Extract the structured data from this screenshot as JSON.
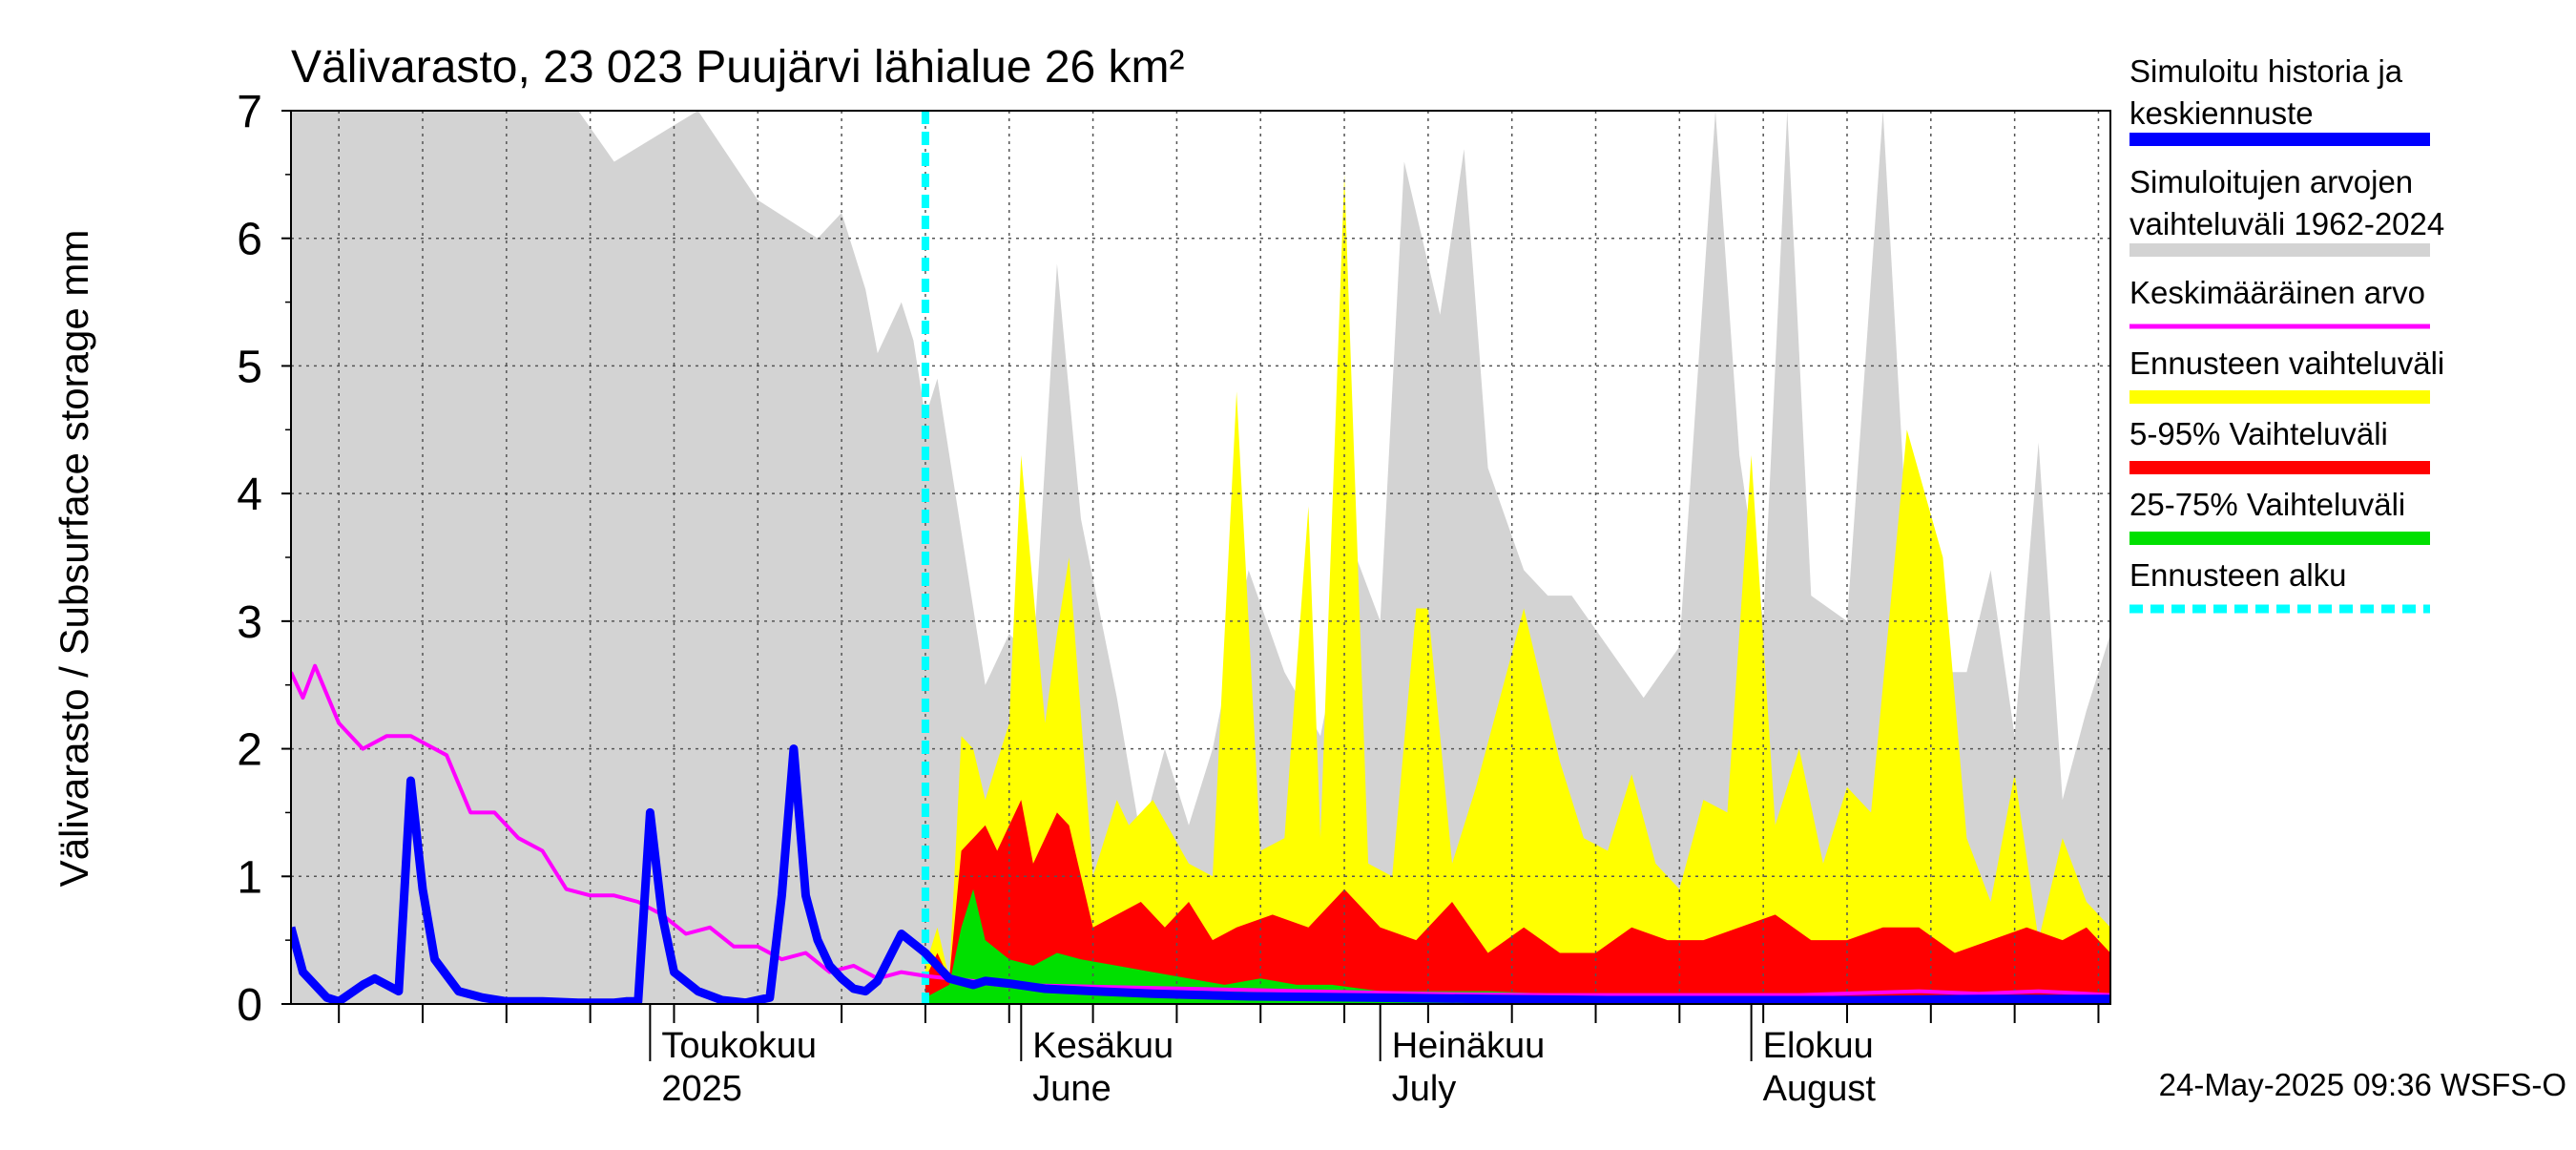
{
  "chart_data": {
    "type": "area",
    "title": "Välivarasto, 23 023 Puujärvi lähialue 26 km²",
    "ylabel": "Välivarasto / Subsurface storage  mm",
    "xlabel": "",
    "ylim": [
      0,
      7
    ],
    "xlim": [
      "2025-04-01",
      "2025-08-31"
    ],
    "y_ticks": [
      "0",
      "1",
      "2",
      "3",
      "4",
      "5",
      "6",
      "7"
    ],
    "x_tick_labels": [
      {
        "line1": "Toukokuu",
        "line2": "2025",
        "date": "2025-05-01"
      },
      {
        "line1": "Kesäkuu",
        "line2": "June",
        "date": "2025-06-01"
      },
      {
        "line1": "Heinäkuu",
        "line2": "July",
        "date": "2025-07-01"
      },
      {
        "line1": "Elokuu",
        "line2": "August",
        "date": "2025-08-01"
      }
    ],
    "grid": true,
    "legend_position": "right",
    "forecast_start": "2025-05-24",
    "footer": "24-May-2025 09:36 WSFS-O",
    "legend": [
      {
        "label1": "Simuloitu historia ja",
        "label2": "keskiennuste",
        "color": "#0000ff",
        "style": "thick"
      },
      {
        "label1": "Simuloitujen arvojen",
        "label2": "vaihteluväli 1962-2024",
        "color": "#d3d3d3",
        "style": "thick"
      },
      {
        "label1": "Keskimääräinen arvo",
        "label2": "",
        "color": "#ff00ff",
        "style": "thin"
      },
      {
        "label1": "Ennusteen vaihteluväli",
        "label2": "",
        "color": "#ffff00",
        "style": "thick"
      },
      {
        "label1": "5-95% Vaihteluväli",
        "label2": "",
        "color": "#ff0000",
        "style": "thick"
      },
      {
        "label1": "25-75% Vaihteluväli",
        "label2": "",
        "color": "#00e000",
        "style": "thick"
      },
      {
        "label1": "Ennusteen alku",
        "label2": "",
        "color": "#00ffff",
        "style": "dashed"
      }
    ],
    "series": [
      {
        "name": "Simuloitujen arvojen vaihteluväli 1962-2024",
        "kind": "band",
        "color": "#d3d3d3",
        "x": [
          "2025-04-01",
          "2025-04-15",
          "2025-04-25",
          "2025-04-28",
          "2025-05-05",
          "2025-05-10",
          "2025-05-15",
          "2025-05-17",
          "2025-05-19",
          "2025-05-20",
          "2025-05-22",
          "2025-05-23",
          "2025-05-24",
          "2025-05-25",
          "2025-05-27",
          "2025-05-29",
          "2025-05-31",
          "2025-06-02",
          "2025-06-04",
          "2025-06-06",
          "2025-06-09",
          "2025-06-11",
          "2025-06-13",
          "2025-06-15",
          "2025-06-17",
          "2025-06-20",
          "2025-06-23",
          "2025-06-26",
          "2025-06-29",
          "2025-07-01",
          "2025-07-03",
          "2025-07-06",
          "2025-07-08",
          "2025-07-10",
          "2025-07-13",
          "2025-07-15",
          "2025-07-17",
          "2025-07-20",
          "2025-07-23",
          "2025-07-26",
          "2025-07-29",
          "2025-07-31",
          "2025-08-02",
          "2025-08-04",
          "2025-08-06",
          "2025-08-09",
          "2025-08-12",
          "2025-08-15",
          "2025-08-17",
          "2025-08-19",
          "2025-08-21",
          "2025-08-23",
          "2025-08-25",
          "2025-08-27",
          "2025-08-29",
          "2025-08-31"
        ],
        "upper": [
          7.0,
          7.0,
          7.0,
          6.6,
          7.0,
          6.3,
          6.0,
          6.2,
          5.6,
          5.1,
          5.5,
          5.2,
          4.6,
          4.9,
          3.7,
          2.5,
          2.9,
          2.7,
          5.8,
          3.8,
          2.4,
          1.3,
          2.0,
          1.4,
          2.0,
          3.4,
          2.6,
          2.1,
          3.5,
          3.0,
          6.6,
          5.4,
          6.7,
          4.2,
          3.4,
          3.2,
          3.2,
          2.8,
          2.4,
          2.8,
          7.0,
          4.3,
          3.0,
          7.0,
          3.2,
          3.0,
          7.0,
          2.0,
          2.6,
          2.6,
          3.4,
          2.1,
          4.4,
          1.6,
          2.3,
          2.9
        ],
        "lower": [
          0.0,
          0.0,
          0.0,
          0.0,
          0.0,
          0.0,
          0.0,
          0.0,
          0.0,
          0.0,
          0.0,
          0.0,
          0.0,
          0.0,
          0.0,
          0.0,
          0.0,
          0.0,
          0.0,
          0.0,
          0.0,
          0.0,
          0.0,
          0.0,
          0.0,
          0.0,
          0.0,
          0.0,
          0.0,
          0.0,
          0.0,
          0.0,
          0.0,
          0.0,
          0.0,
          0.0,
          0.0,
          0.0,
          0.0,
          0.0,
          0.0,
          0.0,
          0.0,
          0.0,
          0.0,
          0.0,
          0.0,
          0.0,
          0.0,
          0.0,
          0.0,
          0.0,
          0.0,
          0.0,
          0.0,
          0.0
        ]
      },
      {
        "name": "Ennusteen vaihteluväli",
        "kind": "band",
        "color": "#ffff00",
        "x": [
          "2025-05-24",
          "2025-05-25",
          "2025-05-26",
          "2025-05-27",
          "2025-05-28",
          "2025-05-29",
          "2025-05-31",
          "2025-06-01",
          "2025-06-03",
          "2025-06-04",
          "2025-06-05",
          "2025-06-07",
          "2025-06-08",
          "2025-06-09",
          "2025-06-10",
          "2025-06-12",
          "2025-06-15",
          "2025-06-17",
          "2025-06-19",
          "2025-06-21",
          "2025-06-23",
          "2025-06-25",
          "2025-06-26",
          "2025-06-28",
          "2025-06-30",
          "2025-07-02",
          "2025-07-04",
          "2025-07-05",
          "2025-07-07",
          "2025-07-09",
          "2025-07-11",
          "2025-07-13",
          "2025-07-16",
          "2025-07-18",
          "2025-07-20",
          "2025-07-22",
          "2025-07-24",
          "2025-07-26",
          "2025-07-28",
          "2025-07-30",
          "2025-08-01",
          "2025-08-03",
          "2025-08-05",
          "2025-08-07",
          "2025-08-09",
          "2025-08-11",
          "2025-08-14",
          "2025-08-17",
          "2025-08-19",
          "2025-08-21",
          "2025-08-23",
          "2025-08-25",
          "2025-08-27",
          "2025-08-29",
          "2025-08-31"
        ],
        "upper": [
          0.3,
          0.6,
          0.2,
          2.1,
          2.0,
          1.6,
          2.2,
          4.3,
          2.2,
          2.9,
          3.5,
          1.0,
          1.3,
          1.6,
          1.4,
          1.6,
          1.1,
          1.0,
          4.8,
          1.2,
          1.3,
          3.9,
          1.3,
          6.5,
          1.1,
          1.0,
          3.1,
          3.1,
          1.1,
          1.7,
          2.4,
          3.1,
          1.9,
          1.3,
          1.2,
          1.8,
          1.1,
          0.9,
          1.6,
          1.5,
          4.3,
          1.4,
          2.0,
          1.1,
          1.7,
          1.5,
          4.5,
          3.5,
          1.3,
          0.8,
          1.8,
          0.5,
          1.3,
          0.8,
          0.6
        ],
        "lower": [
          0.0,
          0.0,
          0.0,
          0.0,
          0.0,
          0.0,
          0.0,
          0.0,
          0.0,
          0.0,
          0.0,
          0.0,
          0.0,
          0.0,
          0.0,
          0.0,
          0.0,
          0.0,
          0.0,
          0.0,
          0.0,
          0.0,
          0.0,
          0.0,
          0.0,
          0.0,
          0.0,
          0.0,
          0.0,
          0.0,
          0.0,
          0.0,
          0.0,
          0.0,
          0.0,
          0.0,
          0.0,
          0.0,
          0.0,
          0.0,
          0.0,
          0.0,
          0.0,
          0.0,
          0.0,
          0.0,
          0.0,
          0.0,
          0.0,
          0.0,
          0.0,
          0.0,
          0.0,
          0.0,
          0.0
        ]
      },
      {
        "name": "5-95% Vaihteluväli",
        "kind": "band",
        "color": "#ff0000",
        "x": [
          "2025-05-24",
          "2025-05-25",
          "2025-05-26",
          "2025-05-27",
          "2025-05-28",
          "2025-05-29",
          "2025-05-30",
          "2025-06-01",
          "2025-06-02",
          "2025-06-04",
          "2025-06-05",
          "2025-06-07",
          "2025-06-09",
          "2025-06-11",
          "2025-06-13",
          "2025-06-15",
          "2025-06-17",
          "2025-06-19",
          "2025-06-22",
          "2025-06-25",
          "2025-06-28",
          "2025-07-01",
          "2025-07-04",
          "2025-07-07",
          "2025-07-10",
          "2025-07-13",
          "2025-07-16",
          "2025-07-19",
          "2025-07-22",
          "2025-07-25",
          "2025-07-28",
          "2025-07-31",
          "2025-08-03",
          "2025-08-06",
          "2025-08-09",
          "2025-08-12",
          "2025-08-15",
          "2025-08-18",
          "2025-08-21",
          "2025-08-24",
          "2025-08-27",
          "2025-08-29",
          "2025-08-31"
        ],
        "upper": [
          0.2,
          0.4,
          0.2,
          1.2,
          1.3,
          1.4,
          1.2,
          1.6,
          1.1,
          1.5,
          1.4,
          0.6,
          0.7,
          0.8,
          0.6,
          0.8,
          0.5,
          0.6,
          0.7,
          0.6,
          0.9,
          0.6,
          0.5,
          0.8,
          0.4,
          0.6,
          0.4,
          0.4,
          0.6,
          0.5,
          0.5,
          0.6,
          0.7,
          0.5,
          0.5,
          0.6,
          0.6,
          0.4,
          0.5,
          0.6,
          0.5,
          0.6,
          0.4
        ],
        "lower": [
          0.0,
          0.0,
          0.0,
          0.0,
          0.0,
          0.0,
          0.0,
          0.0,
          0.0,
          0.0,
          0.0,
          0.0,
          0.0,
          0.0,
          0.0,
          0.0,
          0.0,
          0.0,
          0.0,
          0.0,
          0.0,
          0.0,
          0.0,
          0.0,
          0.0,
          0.0,
          0.0,
          0.0,
          0.0,
          0.0,
          0.0,
          0.0,
          0.0,
          0.0,
          0.0,
          0.0,
          0.0,
          0.0,
          0.0,
          0.0,
          0.0,
          0.0,
          0.0
        ]
      },
      {
        "name": "25-75% Vaihteluväli",
        "kind": "band",
        "color": "#00e000",
        "x": [
          "2025-05-24",
          "2025-05-26",
          "2025-05-27",
          "2025-05-28",
          "2025-05-29",
          "2025-05-31",
          "2025-06-02",
          "2025-06-04",
          "2025-06-06",
          "2025-06-09",
          "2025-06-12",
          "2025-06-15",
          "2025-06-18",
          "2025-06-21",
          "2025-06-24",
          "2025-06-27",
          "2025-07-01",
          "2025-07-05",
          "2025-07-10",
          "2025-07-15",
          "2025-07-20",
          "2025-07-25",
          "2025-07-31",
          "2025-08-10",
          "2025-08-20",
          "2025-08-31"
        ],
        "upper": [
          0.05,
          0.15,
          0.6,
          0.9,
          0.5,
          0.35,
          0.3,
          0.4,
          0.35,
          0.3,
          0.25,
          0.2,
          0.15,
          0.2,
          0.15,
          0.15,
          0.1,
          0.1,
          0.1,
          0.08,
          0.06,
          0.06,
          0.05,
          0.05,
          0.05,
          0.04
        ],
        "lower": [
          0.0,
          0.0,
          0.0,
          0.0,
          0.0,
          0.0,
          0.0,
          0.0,
          0.0,
          0.0,
          0.0,
          0.0,
          0.0,
          0.0,
          0.0,
          0.0,
          0.0,
          0.0,
          0.0,
          0.0,
          0.0,
          0.0,
          0.0,
          0.0,
          0.0,
          0.0
        ]
      },
      {
        "name": "Keskimääräinen arvo",
        "kind": "line",
        "color": "#ff00ff",
        "x": [
          "2025-04-01",
          "2025-04-02",
          "2025-04-03",
          "2025-04-05",
          "2025-04-07",
          "2025-04-09",
          "2025-04-11",
          "2025-04-12",
          "2025-04-14",
          "2025-04-16",
          "2025-04-18",
          "2025-04-20",
          "2025-04-22",
          "2025-04-24",
          "2025-04-26",
          "2025-04-28",
          "2025-04-30",
          "2025-05-02",
          "2025-05-04",
          "2025-05-06",
          "2025-05-08",
          "2025-05-10",
          "2025-05-12",
          "2025-05-14",
          "2025-05-16",
          "2025-05-18",
          "2025-05-20",
          "2025-05-22",
          "2025-05-24",
          "2025-05-26",
          "2025-05-28",
          "2025-05-30",
          "2025-06-05",
          "2025-06-15",
          "2025-06-25",
          "2025-07-05",
          "2025-07-15",
          "2025-07-25",
          "2025-08-05",
          "2025-08-15",
          "2025-08-20",
          "2025-08-25",
          "2025-08-31"
        ],
        "y": [
          2.6,
          2.4,
          2.65,
          2.2,
          2.0,
          2.1,
          2.1,
          2.05,
          1.95,
          1.5,
          1.5,
          1.3,
          1.2,
          0.9,
          0.85,
          0.85,
          0.8,
          0.7,
          0.55,
          0.6,
          0.45,
          0.45,
          0.35,
          0.4,
          0.25,
          0.3,
          0.2,
          0.25,
          0.22,
          0.2,
          0.18,
          0.15,
          0.14,
          0.12,
          0.1,
          0.08,
          0.07,
          0.07,
          0.07,
          0.1,
          0.08,
          0.1,
          0.07
        ]
      },
      {
        "name": "Simuloitu historia ja keskiennuste",
        "kind": "line",
        "color": "#0000ff",
        "x": [
          "2025-04-01",
          "2025-04-02",
          "2025-04-04",
          "2025-04-05",
          "2025-04-07",
          "2025-04-08",
          "2025-04-10",
          "2025-04-11",
          "2025-04-12",
          "2025-04-13",
          "2025-04-15",
          "2025-04-17",
          "2025-04-19",
          "2025-04-22",
          "2025-04-25",
          "2025-04-28",
          "2025-04-29",
          "2025-04-30",
          "2025-05-01",
          "2025-05-02",
          "2025-05-03",
          "2025-05-05",
          "2025-05-07",
          "2025-05-09",
          "2025-05-11",
          "2025-05-12",
          "2025-05-13",
          "2025-05-14",
          "2025-05-15",
          "2025-05-16",
          "2025-05-17",
          "2025-05-18",
          "2025-05-19",
          "2025-05-20",
          "2025-05-22",
          "2025-05-24",
          "2025-05-26",
          "2025-05-28",
          "2025-05-29",
          "2025-05-31",
          "2025-06-03",
          "2025-06-07",
          "2025-06-12",
          "2025-06-20",
          "2025-06-30",
          "2025-07-10",
          "2025-07-20",
          "2025-07-31",
          "2025-08-10",
          "2025-08-20",
          "2025-08-31"
        ],
        "y": [
          0.6,
          0.25,
          0.05,
          0.02,
          0.15,
          0.2,
          0.1,
          1.75,
          0.9,
          0.35,
          0.1,
          0.05,
          0.02,
          0.02,
          0.01,
          0.01,
          0.02,
          0.02,
          1.5,
          0.7,
          0.25,
          0.1,
          0.03,
          0.01,
          0.05,
          0.85,
          2.0,
          0.85,
          0.5,
          0.3,
          0.2,
          0.12,
          0.1,
          0.18,
          0.55,
          0.4,
          0.2,
          0.15,
          0.18,
          0.16,
          0.12,
          0.1,
          0.08,
          0.06,
          0.05,
          0.04,
          0.03,
          0.03,
          0.03,
          0.04,
          0.04
        ]
      }
    ]
  }
}
